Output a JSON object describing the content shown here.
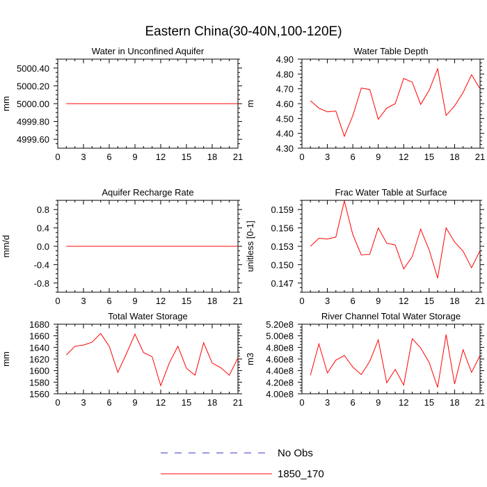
{
  "title": "Eastern China(30-40N,100-120E)",
  "chart_data": [
    {
      "type": "line",
      "title": "Water in Unconfined Aquifer",
      "xlabel": "",
      "ylabel": "mm",
      "xlim": [
        0,
        21
      ],
      "ylim": [
        4999.5,
        5000.5
      ],
      "xticks": [
        0,
        3,
        6,
        9,
        12,
        15,
        18,
        21
      ],
      "xtick_labels": [
        "0",
        "3",
        "6",
        "9",
        "12",
        "15",
        "18",
        "21"
      ],
      "yticks": [
        4999.6,
        4999.8,
        5000.0,
        5000.2,
        5000.4
      ],
      "ytick_labels": [
        "4999.60",
        "4999.80",
        "5000.00",
        "5000.20",
        "5000.40"
      ],
      "series": [
        {
          "name": "1850_170",
          "color": "#ff0000",
          "x": [
            1,
            21
          ],
          "values": [
            5000.0,
            5000.0
          ]
        }
      ]
    },
    {
      "type": "line",
      "title": "Water Table Depth",
      "xlabel": "",
      "ylabel": "m",
      "xlim": [
        0,
        21
      ],
      "ylim": [
        4.3,
        4.9
      ],
      "xticks": [
        0,
        3,
        6,
        9,
        12,
        15,
        18,
        21
      ],
      "xtick_labels": [
        "0",
        "3",
        "6",
        "9",
        "12",
        "15",
        "18",
        "21"
      ],
      "yticks": [
        4.3,
        4.4,
        4.5,
        4.6,
        4.7,
        4.8,
        4.9
      ],
      "ytick_labels": [
        "4.30",
        "4.40",
        "4.50",
        "4.60",
        "4.70",
        "4.80",
        "4.90"
      ],
      "series": [
        {
          "name": "1850_170",
          "color": "#ff0000",
          "x": [
            1,
            2,
            3,
            4,
            5,
            6,
            7,
            8,
            9,
            10,
            11,
            12,
            13,
            14,
            15,
            16,
            17,
            18,
            19,
            20,
            21
          ],
          "values": [
            4.62,
            4.57,
            4.545,
            4.55,
            4.38,
            4.52,
            4.705,
            4.695,
            4.495,
            4.57,
            4.6,
            4.77,
            4.745,
            4.595,
            4.69,
            4.835,
            4.52,
            4.585,
            4.675,
            4.795,
            4.7
          ]
        }
      ]
    },
    {
      "type": "line",
      "title": "Aquifer Recharge Rate",
      "xlabel": "",
      "ylabel": "mm/d",
      "xlim": [
        0,
        21
      ],
      "ylim": [
        -1.0,
        1.0
      ],
      "xticks": [
        0,
        3,
        6,
        9,
        12,
        15,
        18,
        21
      ],
      "xtick_labels": [
        "0",
        "3",
        "6",
        "9",
        "12",
        "15",
        "18",
        "21"
      ],
      "yticks": [
        -0.8,
        -0.4,
        0.0,
        0.4,
        0.8
      ],
      "ytick_labels": [
        "-0.8",
        "-0.4",
        "0.0",
        "0.4",
        "0.8"
      ],
      "series": [
        {
          "name": "1850_170",
          "color": "#ff0000",
          "x": [
            1,
            21
          ],
          "values": [
            0.0,
            0.0
          ]
        }
      ]
    },
    {
      "type": "line",
      "title": "Frac Water Table at Surface",
      "xlabel": "",
      "ylabel": "unitless [0-1]",
      "xlim": [
        0,
        21
      ],
      "ylim": [
        0.1455,
        0.1605
      ],
      "xticks": [
        0,
        3,
        6,
        9,
        12,
        15,
        18,
        21
      ],
      "xtick_labels": [
        "0",
        "3",
        "6",
        "9",
        "12",
        "15",
        "18",
        "21"
      ],
      "yticks": [
        0.147,
        0.15,
        0.153,
        0.156,
        0.159
      ],
      "ytick_labels": [
        "0.147",
        "0.150",
        "0.153",
        "0.156",
        "0.159"
      ],
      "series": [
        {
          "name": "1850_170",
          "color": "#ff0000",
          "x": [
            1,
            2,
            3,
            4,
            5,
            6,
            7,
            8,
            9,
            10,
            11,
            12,
            13,
            14,
            15,
            16,
            17,
            18,
            19,
            20,
            21
          ],
          "values": [
            0.153,
            0.1543,
            0.1542,
            0.1545,
            0.1604,
            0.1549,
            0.1516,
            0.1517,
            0.156,
            0.1535,
            0.1532,
            0.1493,
            0.1513,
            0.1558,
            0.1524,
            0.1478,
            0.156,
            0.1537,
            0.1522,
            0.1495,
            0.1523
          ]
        }
      ]
    },
    {
      "type": "line",
      "title": "Total Water Storage",
      "xlabel": "",
      "ylabel": "mm",
      "xlim": [
        0,
        21
      ],
      "ylim": [
        1560,
        1680
      ],
      "xticks": [
        0,
        3,
        6,
        9,
        12,
        15,
        18,
        21
      ],
      "xtick_labels": [
        "0",
        "3",
        "6",
        "9",
        "12",
        "15",
        "18",
        "21"
      ],
      "yticks": [
        1560,
        1580,
        1600,
        1620,
        1640,
        1660,
        1680
      ],
      "ytick_labels": [
        "1560",
        "1580",
        "1600",
        "1620",
        "1640",
        "1660",
        "1680"
      ],
      "series": [
        {
          "name": "1850_170",
          "color": "#ff0000",
          "x": [
            1,
            2,
            3,
            4,
            5,
            6,
            7,
            8,
            9,
            10,
            11,
            12,
            13,
            14,
            15,
            16,
            17,
            18,
            19,
            20,
            21
          ],
          "values": [
            1627,
            1642,
            1644,
            1649,
            1664,
            1642,
            1597,
            1629,
            1663,
            1631,
            1624,
            1574,
            1613,
            1642,
            1604,
            1592,
            1648,
            1613,
            1605,
            1592,
            1622
          ]
        }
      ]
    },
    {
      "type": "line",
      "title": "River Channel Total Water Storage",
      "xlabel": "",
      "ylabel": "m3",
      "xlim": [
        0,
        21
      ],
      "ylim": [
        400000000.0,
        520000000.0
      ],
      "xticks": [
        0,
        3,
        6,
        9,
        12,
        15,
        18,
        21
      ],
      "xtick_labels": [
        "0",
        "3",
        "6",
        "9",
        "12",
        "15",
        "18",
        "21"
      ],
      "yticks": [
        400000000.0,
        420000000.0,
        440000000.0,
        460000000.0,
        480000000.0,
        500000000.0,
        520000000.0
      ],
      "ytick_labels": [
        "4.00e8",
        "4.20e8",
        "4.40e8",
        "4.60e8",
        "4.80e8",
        "5.00e8",
        "5.20e8"
      ],
      "series": [
        {
          "name": "1850_170",
          "color": "#ff0000",
          "x": [
            1,
            2,
            3,
            4,
            5,
            6,
            7,
            8,
            9,
            10,
            11,
            12,
            13,
            14,
            15,
            16,
            17,
            18,
            19,
            20,
            21
          ],
          "values": [
            432000000.0,
            486000000.0,
            436000000.0,
            458000000.0,
            466000000.0,
            446000000.0,
            433000000.0,
            456000000.0,
            493000000.0,
            419000000.0,
            442000000.0,
            415000000.0,
            495000000.0,
            479000000.0,
            454000000.0,
            411000000.0,
            502000000.0,
            417000000.0,
            476000000.0,
            437000000.0,
            466000000.0
          ]
        }
      ]
    }
  ],
  "legend": {
    "entries": [
      {
        "label": "No Obs",
        "style": "dashed",
        "color": "#3333cc"
      },
      {
        "label": "1850_170",
        "style": "solid",
        "color": "#ff0000"
      }
    ],
    "placement": "bottom-center"
  }
}
